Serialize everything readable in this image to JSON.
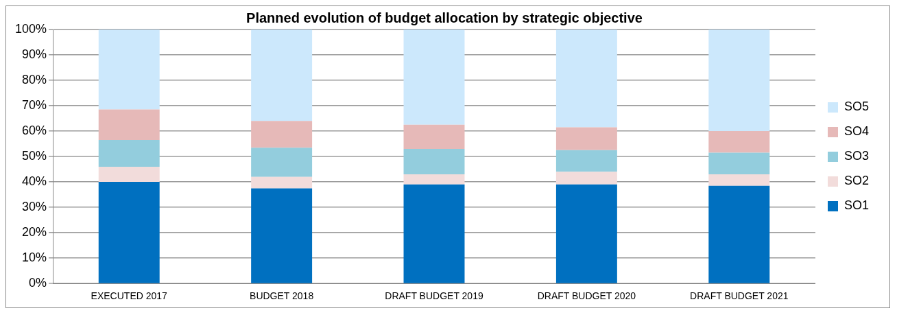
{
  "chart_data": {
    "type": "bar",
    "title": "Planned evolution of budget allocation by strategic objective",
    "categories": [
      "EXECUTED 2017",
      "BUDGET 2018",
      "DRAFT BUDGET 2019",
      "DRAFT BUDGET 2020",
      "DRAFT BUDGET 2021"
    ],
    "stacked": true,
    "series": [
      {
        "name": "SO1",
        "color": "#0070c0",
        "values": [
          40,
          37.5,
          39,
          39,
          38.5
        ]
      },
      {
        "name": "SO2",
        "color": "#f2dcdb",
        "values": [
          6,
          4.5,
          4,
          5,
          4.5
        ]
      },
      {
        "name": "SO3",
        "color": "#93cddd",
        "values": [
          10.5,
          11.5,
          10,
          8.5,
          8.5
        ]
      },
      {
        "name": "SO4",
        "color": "#e6b9b8",
        "values": [
          12,
          10.5,
          9.5,
          9,
          8.5
        ]
      },
      {
        "name": "SO5",
        "color": "#cce8fc",
        "values": [
          31.5,
          36,
          37.5,
          38.5,
          40
        ]
      }
    ],
    "ylim": [
      0,
      100
    ],
    "yticks": [
      {
        "value": 0,
        "label": "0%"
      },
      {
        "value": 10,
        "label": "10%"
      },
      {
        "value": 20,
        "label": "20%"
      },
      {
        "value": 30,
        "label": "30%"
      },
      {
        "value": 40,
        "label": "40%"
      },
      {
        "value": 50,
        "label": "50%"
      },
      {
        "value": 60,
        "label": "60%"
      },
      {
        "value": 70,
        "label": "70%"
      },
      {
        "value": 80,
        "label": "80%"
      },
      {
        "value": 90,
        "label": "90%"
      },
      {
        "value": 100,
        "label": "100%"
      }
    ],
    "grid": "y",
    "legend": "right"
  }
}
